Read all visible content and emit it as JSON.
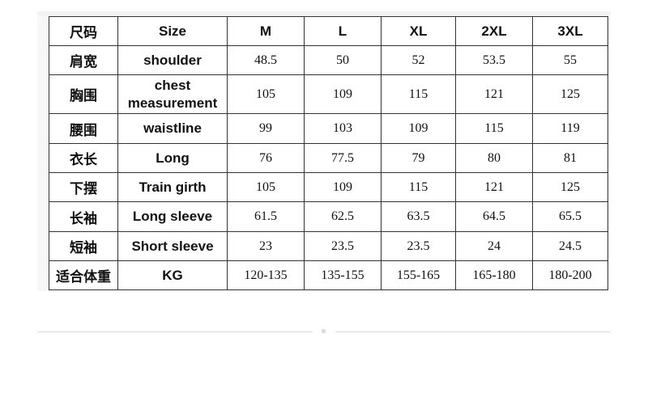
{
  "table": {
    "header": [
      "尺码",
      "Size",
      "M",
      "L",
      "XL",
      "2XL",
      "3XL"
    ],
    "rows": [
      [
        "肩宽",
        "shoulder",
        "48.5",
        "50",
        "52",
        "53.5",
        "55"
      ],
      [
        "胸围",
        "chest measurement",
        "105",
        "109",
        "115",
        "121",
        "125"
      ],
      [
        "腰围",
        "waistline",
        "99",
        "103",
        "109",
        "115",
        "119"
      ],
      [
        "衣长",
        "Long",
        "76",
        "77.5",
        "79",
        "80",
        "81"
      ],
      [
        "下摆",
        "Train girth",
        "105",
        "109",
        "115",
        "121",
        "125"
      ],
      [
        "长袖",
        "Long sleeve",
        "61.5",
        "62.5",
        "63.5",
        "64.5",
        "65.5"
      ],
      [
        "短袖",
        "Short sleeve",
        "23",
        "23.5",
        "23.5",
        "24",
        "24.5"
      ],
      [
        "适合体重",
        "KG",
        "120-135",
        "135-155",
        "155-165",
        "165-180",
        "180-200"
      ]
    ]
  }
}
